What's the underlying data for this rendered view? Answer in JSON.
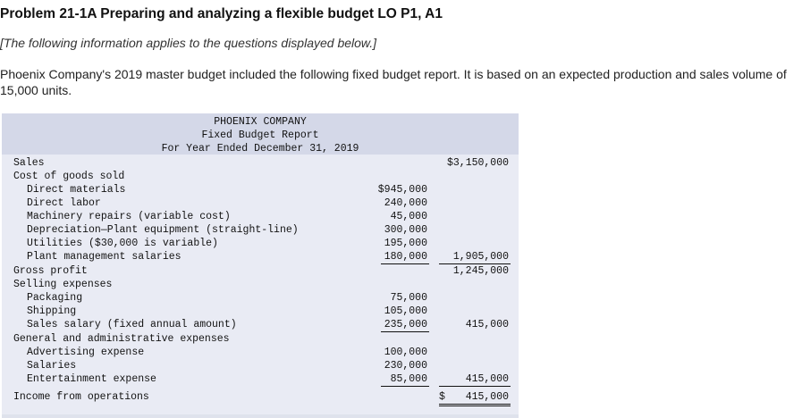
{
  "problem": {
    "title": "Problem 21-1A Preparing and analyzing a flexible budget LO P1, A1",
    "note": "[The following information applies to the questions displayed below.]",
    "intro": "Phoenix Company's 2019 master budget included the following fixed budget report. It is based on an expected production and sales volume of 15,000 units."
  },
  "report": {
    "company": "PHOENIX COMPANY",
    "name": "Fixed Budget Report",
    "period": "For Year Ended December 31, 2019",
    "rows": [
      {
        "label": "Sales",
        "c1": "",
        "c2": "$3,150,000"
      },
      {
        "label": "Cost of goods sold",
        "c1": "",
        "c2": ""
      },
      {
        "label": "Direct materials",
        "c1": "$945,000",
        "c2": ""
      },
      {
        "label": "Direct labor",
        "c1": "240,000",
        "c2": ""
      },
      {
        "label": "Machinery repairs (variable cost)",
        "c1": "45,000",
        "c2": ""
      },
      {
        "label": "Depreciation—Plant equipment (straight-line)",
        "c1": "300,000",
        "c2": ""
      },
      {
        "label": "Utilities ($30,000 is variable)",
        "c1": "195,000",
        "c2": ""
      },
      {
        "label": "Plant management salaries",
        "c1": "180,000",
        "c2": "1,905,000"
      },
      {
        "label": "Gross profit",
        "c1": "",
        "c2": "1,245,000"
      },
      {
        "label": "Selling expenses",
        "c1": "",
        "c2": ""
      },
      {
        "label": "Packaging",
        "c1": "75,000",
        "c2": ""
      },
      {
        "label": "Shipping",
        "c1": "105,000",
        "c2": ""
      },
      {
        "label": "Sales salary (fixed annual amount)",
        "c1": "235,000",
        "c2": "415,000"
      },
      {
        "label": "General and administrative expenses",
        "c1": "",
        "c2": ""
      },
      {
        "label": "Advertising expense",
        "c1": "100,000",
        "c2": ""
      },
      {
        "label": "Salaries",
        "c1": "230,000",
        "c2": ""
      },
      {
        "label": "Entertainment expense",
        "c1": "85,000",
        "c2": "415,000"
      },
      {
        "label": "Income from operations",
        "c1": "",
        "c2": "415,000",
        "dollar": "$"
      }
    ]
  }
}
